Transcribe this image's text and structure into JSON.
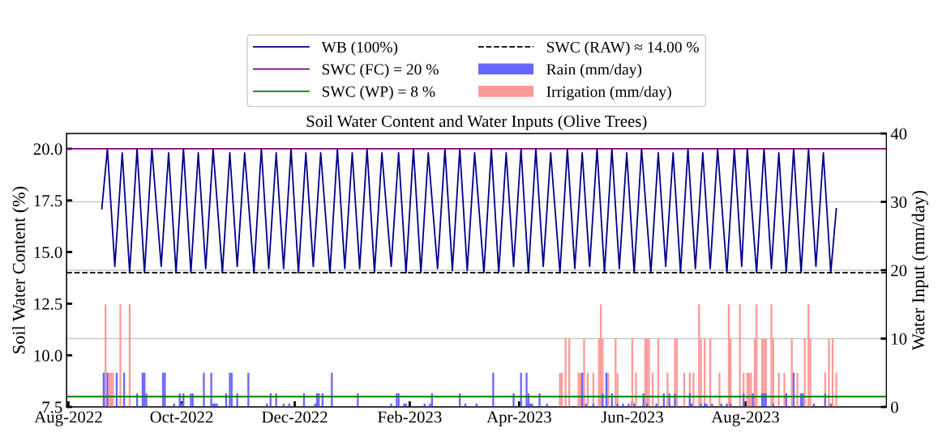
{
  "chart_data": {
    "type": "line",
    "title": "Soil Water Content and Water Inputs (Olive Trees)",
    "ylabel": "Soil Water Content (%)",
    "y2label": "Water Input (mm/day)",
    "xlim": [
      "2022-07-31",
      "2023-10-16"
    ],
    "xticks": [
      {
        "value": "2022-08-01",
        "label": "Aug-2022"
      },
      {
        "value": "2022-10-01",
        "label": "Oct-2022"
      },
      {
        "value": "2022-12-01",
        "label": "Dec-2022"
      },
      {
        "value": "2023-02-01",
        "label": "Feb-2023"
      },
      {
        "value": "2023-04-01",
        "label": "Apr-2023"
      },
      {
        "value": "2023-06-01",
        "label": "Jun-2023"
      },
      {
        "value": "2023-08-01",
        "label": "Aug-2023"
      }
    ],
    "ylim": [
      7.5,
      20.74
    ],
    "yticks": [
      {
        "value": 7.5,
        "label": "7.5"
      },
      {
        "value": 10,
        "label": "10.0"
      },
      {
        "value": 12.5,
        "label": "12.5"
      },
      {
        "value": 15,
        "label": "15.0"
      },
      {
        "value": 17.5,
        "label": "17.5"
      },
      {
        "value": 20,
        "label": "20.0"
      }
    ],
    "y2lim": [
      0,
      40
    ],
    "y2ticks": [
      0,
      10,
      20,
      30,
      40
    ],
    "grid": "y",
    "legend": "top",
    "ref_lines": [
      {
        "axis": "y",
        "value": 20,
        "label": "SWC (FC) = 20 %",
        "color": "#800080",
        "line_style": "solid"
      },
      {
        "axis": "y",
        "value": 8,
        "label": "SWC (WP) = 8 %",
        "color": "#008000",
        "line_style": "solid"
      },
      {
        "axis": "y",
        "value": 14,
        "label": "SWC (RAW) ≈ 14.00 %",
        "color": "#000000",
        "line_style": "dashed"
      }
    ],
    "series": [
      {
        "name": "WB (100%)",
        "color": "#00008b",
        "x": [
          "2022-08-19",
          "2022-08-22",
          "2022-08-26",
          "2022-08-30",
          "2022-09-03",
          "2022-09-07",
          "2022-09-11",
          "2022-09-15",
          "2022-09-20",
          "2022-09-24",
          "2022-09-28",
          "2022-10-02",
          "2022-10-06",
          "2022-10-10",
          "2022-10-14",
          "2022-10-18",
          "2022-10-23",
          "2022-10-27",
          "2022-10-31",
          "2022-11-04",
          "2022-11-09",
          "2022-11-13",
          "2022-11-17",
          "2022-11-21",
          "2022-11-25",
          "2022-11-29",
          "2022-12-03",
          "2022-12-07",
          "2022-12-11",
          "2022-12-15",
          "2022-12-20",
          "2022-12-24",
          "2022-12-28",
          "2023-01-01",
          "2023-01-05",
          "2023-01-09",
          "2023-01-13",
          "2023-01-17",
          "2023-01-22",
          "2023-01-26",
          "2023-01-30",
          "2023-02-03",
          "2023-02-07",
          "2023-02-11",
          "2023-02-16",
          "2023-02-20",
          "2023-02-24",
          "2023-02-28",
          "2023-03-04",
          "2023-03-08",
          "2023-03-13",
          "2023-03-17",
          "2023-03-21",
          "2023-03-25",
          "2023-03-29",
          "2023-04-02",
          "2023-04-06",
          "2023-04-10",
          "2023-04-14",
          "2023-04-18",
          "2023-04-23",
          "2023-04-27",
          "2023-05-01",
          "2023-05-05",
          "2023-05-09",
          "2023-05-13",
          "2023-05-17",
          "2023-05-21",
          "2023-05-25",
          "2023-05-29",
          "2023-06-02",
          "2023-06-06",
          "2023-06-11",
          "2023-06-15",
          "2023-06-19",
          "2023-06-23",
          "2023-06-27",
          "2023-07-01",
          "2023-07-05",
          "2023-07-09",
          "2023-07-13",
          "2023-07-17",
          "2023-07-22",
          "2023-07-26",
          "2023-07-30",
          "2023-08-02",
          "2023-08-07",
          "2023-08-11",
          "2023-08-15",
          "2023-08-19",
          "2023-08-23",
          "2023-08-27",
          "2023-08-31",
          "2023-09-04",
          "2023-09-08",
          "2023-09-12",
          "2023-09-16",
          "2023-09-19"
        ],
        "values": [
          17.1,
          20,
          14.3,
          19.8,
          14.0,
          20,
          14.0,
          20,
          14.3,
          19.8,
          14.0,
          20,
          14.0,
          19.8,
          14.2,
          20,
          14.0,
          19.8,
          14.3,
          19.8,
          14.0,
          20,
          14.2,
          19.8,
          14.2,
          20,
          14.0,
          19.8,
          14.3,
          19.8,
          14.0,
          20,
          14.2,
          19.8,
          14.2,
          20,
          14.0,
          19.8,
          14.3,
          19.8,
          14.0,
          20,
          14.0,
          19.8,
          14.2,
          20,
          14.1,
          20,
          14.1,
          19.8,
          14.0,
          20,
          14.0,
          19.8,
          14.3,
          20,
          14.0,
          20,
          14.3,
          19.8,
          14.0,
          20,
          14.2,
          19.8,
          14.3,
          20,
          14.0,
          20,
          14.2,
          19.8,
          14.0,
          20,
          14.0,
          19.8,
          14.3,
          19.8,
          14.0,
          20,
          14.2,
          19.8,
          14.2,
          20,
          14.0,
          20,
          14.3,
          20,
          14.0,
          20,
          14.2,
          19.8,
          14.0,
          20,
          14.0,
          20,
          14.3,
          19.8,
          14.0,
          17.1
        ]
      },
      {
        "name": "Rain (mm/day)",
        "type": "bar",
        "axis": "y2",
        "color": "#6666ff",
        "x": [
          "2022-08-20",
          "2022-08-22",
          "2022-08-27",
          "2022-08-31",
          "2022-09-07",
          "2022-09-10",
          "2022-09-11",
          "2022-09-12",
          "2022-09-21",
          "2022-09-22",
          "2022-09-27",
          "2022-09-30",
          "2022-10-01",
          "2022-10-02",
          "2022-10-06",
          "2022-10-07",
          "2022-10-13",
          "2022-10-17",
          "2022-10-18",
          "2022-10-19",
          "2022-10-20",
          "2022-10-25",
          "2022-10-27",
          "2022-10-28",
          "2022-10-31",
          "2022-11-06",
          "2022-11-16",
          "2022-11-18",
          "2022-11-21",
          "2022-11-25",
          "2022-11-28",
          "2022-12-06",
          "2022-12-12",
          "2022-12-13",
          "2022-12-14",
          "2022-12-16",
          "2022-12-21",
          "2023-01-04",
          "2023-01-22",
          "2023-01-25",
          "2023-01-26",
          "2023-01-29",
          "2023-01-30",
          "2023-02-09",
          "2023-02-12",
          "2023-02-13",
          "2023-02-28",
          "2023-03-03",
          "2023-03-09",
          "2023-03-18",
          "2023-03-29",
          "2023-04-02",
          "2023-04-05",
          "2023-04-06",
          "2023-04-07",
          "2023-04-08",
          "2023-04-12",
          "2023-04-16",
          "2023-05-05",
          "2023-05-07",
          "2023-05-11",
          "2023-05-16",
          "2023-05-18",
          "2023-05-21",
          "2023-05-24",
          "2023-05-27",
          "2023-05-30",
          "2023-06-02",
          "2023-06-07",
          "2023-06-09",
          "2023-06-14",
          "2023-06-18",
          "2023-06-21",
          "2023-06-24",
          "2023-07-02",
          "2023-07-03",
          "2023-07-08",
          "2023-07-10",
          "2023-07-11",
          "2023-07-14",
          "2023-07-19",
          "2023-07-22",
          "2023-07-24",
          "2023-07-31",
          "2023-08-05",
          "2023-08-10",
          "2023-08-11",
          "2023-08-12",
          "2023-08-16",
          "2023-08-23",
          "2023-08-27",
          "2023-08-31",
          "2023-09-01",
          "2023-09-07",
          "2023-09-13",
          "2023-09-16"
        ],
        "values": [
          5,
          5,
          5,
          5,
          2,
          5,
          5,
          2,
          5,
          5,
          0.5,
          2,
          0.5,
          2,
          2,
          2,
          5,
          5,
          0.5,
          0.5,
          0.5,
          2,
          5,
          5,
          2,
          5,
          0.5,
          2,
          2,
          0.5,
          0.5,
          2,
          0.5,
          2,
          2,
          2,
          5,
          2,
          0.5,
          2,
          2,
          0.5,
          0.5,
          0.5,
          0.5,
          2,
          2,
          0.5,
          0.5,
          5,
          2,
          5,
          5,
          2,
          0.5,
          0.5,
          2,
          0.5,
          5,
          0.5,
          0.5,
          2,
          5,
          2,
          0.5,
          0.5,
          0.5,
          0.5,
          2,
          0.5,
          0.5,
          2,
          2,
          2,
          2,
          0.5,
          0.5,
          0.5,
          0.5,
          0.5,
          0.5,
          0.5,
          0.5,
          2,
          2,
          2,
          2,
          2,
          0.5,
          2,
          5,
          2,
          2,
          0.5,
          2,
          0.5
        ]
      },
      {
        "name": "Irrigation (mm/day)",
        "type": "bar",
        "axis": "y2",
        "color": "#ff9999",
        "x": [
          "2022-08-21",
          "2022-08-23",
          "2022-08-24",
          "2022-08-25",
          "2022-08-29",
          "2022-09-03",
          "2023-04-23",
          "2023-04-24",
          "2023-04-26",
          "2023-04-28",
          "2023-05-03",
          "2023-05-04",
          "2023-05-06",
          "2023-05-08",
          "2023-05-11",
          "2023-05-14",
          "2023-05-15",
          "2023-05-16",
          "2023-05-19",
          "2023-05-23",
          "2023-05-24",
          "2023-06-01",
          "2023-06-03",
          "2023-06-08",
          "2023-06-09",
          "2023-06-10",
          "2023-06-12",
          "2023-06-15",
          "2023-06-20",
          "2023-06-24",
          "2023-06-25",
          "2023-06-29",
          "2023-07-02",
          "2023-07-04",
          "2023-07-07",
          "2023-07-08",
          "2023-07-10",
          "2023-07-13",
          "2023-07-18",
          "2023-07-23",
          "2023-07-24",
          "2023-07-29",
          "2023-07-31",
          "2023-08-02",
          "2023-08-03",
          "2023-08-04",
          "2023-08-06",
          "2023-08-07",
          "2023-08-10",
          "2023-08-11",
          "2023-08-12",
          "2023-08-15",
          "2023-08-16",
          "2023-08-19",
          "2023-08-22",
          "2023-08-26",
          "2023-08-29",
          "2023-09-02",
          "2023-09-04",
          "2023-09-05",
          "2023-09-13",
          "2023-09-15",
          "2023-09-17",
          "2023-09-19"
        ],
        "values": [
          15,
          5,
          5,
          5,
          15,
          15,
          5,
          5,
          10,
          10,
          5,
          5,
          10,
          5,
          5,
          10,
          15,
          10,
          5,
          10,
          5,
          10,
          5,
          10,
          10,
          10,
          5,
          10,
          5,
          10,
          10,
          5,
          5,
          5,
          15,
          10,
          10,
          10,
          5,
          15,
          10,
          15,
          5,
          5,
          5,
          5,
          10,
          15,
          10,
          10,
          10,
          15,
          10,
          5,
          5,
          10,
          5,
          10,
          15,
          10,
          5,
          10,
          10,
          5
        ]
      }
    ]
  }
}
